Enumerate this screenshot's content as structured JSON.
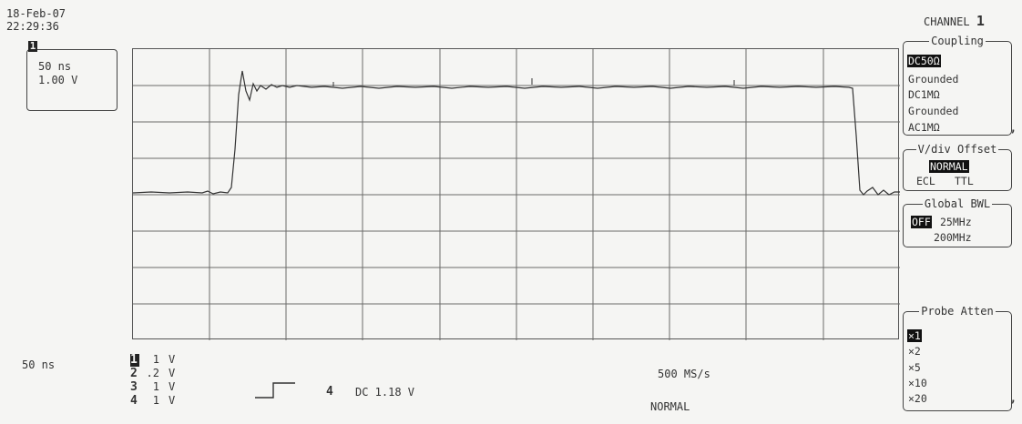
{
  "header": {
    "date": "18-Feb-07",
    "time": "22:29:36"
  },
  "channel_box": {
    "tag": "1",
    "time_div": "50 ns",
    "volt_div": "1.00 V"
  },
  "bottom": {
    "time_div": "50 ns",
    "channels": [
      {
        "num": "1",
        "value": "1",
        "unit": "V"
      },
      {
        "num": "2",
        "value": ".2",
        "unit": "V"
      },
      {
        "num": "3",
        "value": "1",
        "unit": "V"
      },
      {
        "num": "4",
        "value": "1",
        "unit": "V"
      }
    ],
    "trigger_source": "4",
    "trigger_text": "DC 1.18 V",
    "sample_rate": "500 MS/s",
    "acq_mode": "NORMAL"
  },
  "menu": {
    "channel_label": "CHANNEL",
    "channel_number": "1",
    "coupling": {
      "title": "Coupling",
      "options": [
        "DC50Ω",
        "Grounded",
        "DC1MΩ",
        "Grounded",
        "AC1MΩ"
      ],
      "selected": "DC50Ω"
    },
    "offset": {
      "title": "V/div Offset",
      "options": [
        "NORMAL",
        "ECL",
        "TTL"
      ],
      "selected": "NORMAL"
    },
    "bandwidth": {
      "title": "Global BWL",
      "options": [
        "OFF",
        "25MHz",
        "200MHz"
      ],
      "selected": "OFF"
    },
    "probe": {
      "title": "Probe Atten",
      "options": [
        "×1",
        "×2",
        "×5",
        "×10",
        "×20"
      ],
      "selected": "×1"
    }
  },
  "icons": [
    "trigger-rising-edge-icon",
    "more-options-icon"
  ]
}
